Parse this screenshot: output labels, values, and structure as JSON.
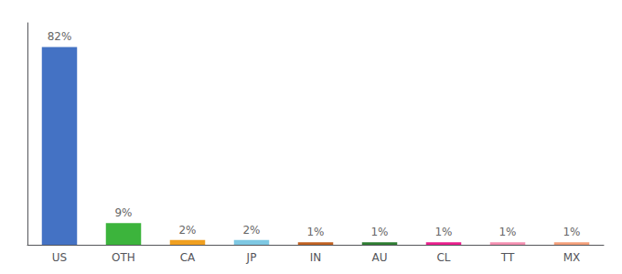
{
  "chart_data": {
    "type": "bar",
    "categories": [
      "US",
      "OTH",
      "CA",
      "JP",
      "IN",
      "AU",
      "CL",
      "TT",
      "MX"
    ],
    "values": [
      82,
      9,
      2,
      2,
      1,
      1,
      1,
      1,
      1
    ],
    "value_labels": [
      "82%",
      "9%",
      "2%",
      "2%",
      "1%",
      "1%",
      "1%",
      "1%",
      "1%"
    ],
    "colors": [
      "#4472c4",
      "#3cb43c",
      "#f0a020",
      "#7ec8e3",
      "#c06020",
      "#2e7d32",
      "#e91e8c",
      "#f48fb1",
      "#f4a07a"
    ],
    "ylim": [
      0,
      92
    ],
    "grid": false,
    "data_labels": true,
    "tick_labels": "x"
  }
}
